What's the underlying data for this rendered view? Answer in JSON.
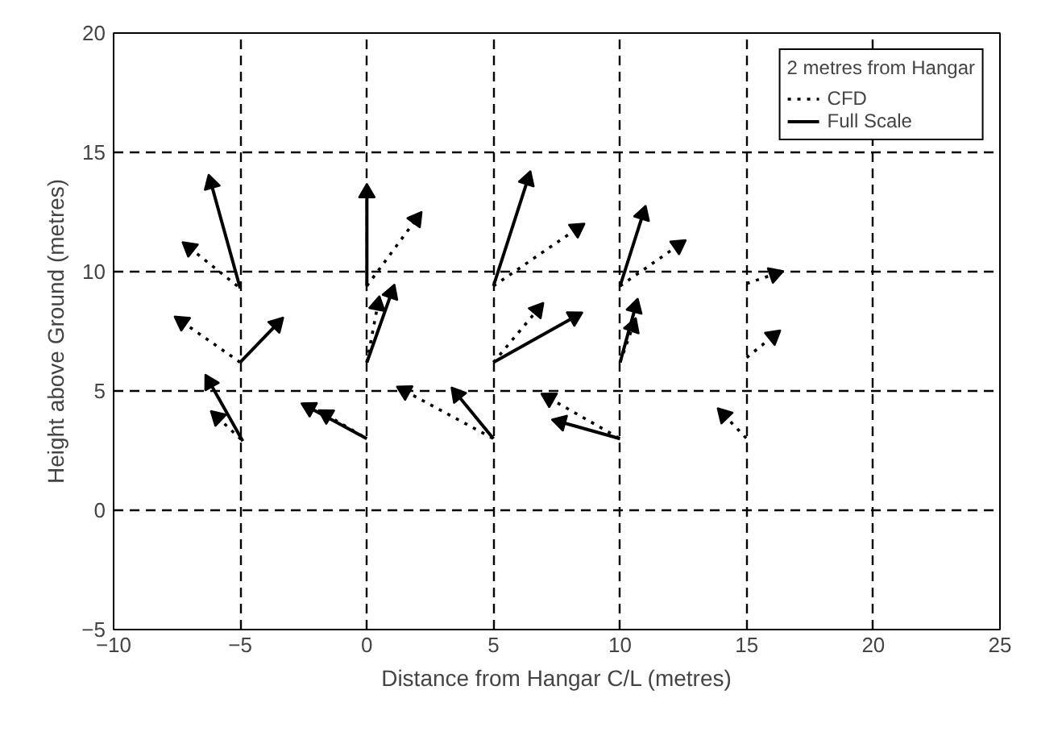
{
  "chart_data": {
    "type": "line",
    "xlabel": "Distance from Hangar C/L (metres)",
    "ylabel": "Height above Ground (metres)",
    "legend_title": "2 metres from Hangar",
    "legend": "top right",
    "grid": true,
    "xlim": [
      -10,
      25
    ],
    "ylim": [
      -5,
      20
    ],
    "xticks": [
      -10,
      -5,
      0,
      5,
      10,
      15,
      20,
      25
    ],
    "yticks": [
      -5,
      0,
      5,
      10,
      15,
      20
    ],
    "series": [
      {
        "name": "CFD",
        "color": "#000000",
        "line_style": "dotted",
        "x": [
          -7.0,
          -5
        ],
        "values": [
          11.0,
          9.3
        ]
      },
      {
        "color": "#000000",
        "line_style": "dotted",
        "x": [
          -7.3,
          -5
        ],
        "values": [
          7.9,
          6.2
        ]
      },
      {
        "color": "#000000",
        "line_style": "dotted",
        "x": [
          -5.9,
          -4.9
        ],
        "values": [
          3.9,
          2.9
        ]
      },
      {
        "color": "#000000",
        "line_style": "dotted",
        "x": [
          0,
          1.95
        ],
        "values": [
          9.4,
          12.2
        ]
      },
      {
        "color": "#000000",
        "line_style": "dotted",
        "x": [
          0,
          0.43
        ],
        "values": [
          6.2,
          8.6
        ]
      },
      {
        "color": "#000000",
        "line_style": "dotted",
        "x": [
          -1.6,
          0
        ],
        "values": [
          4.0,
          3.0
        ]
      },
      {
        "color": "#000000",
        "line_style": "dotted",
        "x": [
          5,
          8.3
        ],
        "values": [
          9.4,
          11.8
        ]
      },
      {
        "color": "#000000",
        "line_style": "dotted",
        "x": [
          5,
          6.74
        ],
        "values": [
          6.2,
          8.4
        ]
      },
      {
        "color": "#000000",
        "line_style": "dotted",
        "x": [
          1.5,
          5
        ],
        "values": [
          5.0,
          3.0
        ]
      },
      {
        "color": "#000000",
        "line_style": "dotted",
        "x": [
          10,
          12.3
        ],
        "values": [
          9.4,
          11.1
        ]
      },
      {
        "color": "#000000",
        "line_style": "dotted",
        "x": [
          10,
          10.5
        ],
        "values": [
          6.2,
          7.7
        ]
      },
      {
        "color": "#000000",
        "line_style": "dotted",
        "x": [
          7.2,
          10
        ],
        "values": [
          4.7,
          3.0
        ]
      },
      {
        "color": "#000000",
        "line_style": "dotted",
        "x": [
          15,
          16.1
        ],
        "values": [
          9.5,
          9.9
        ]
      },
      {
        "color": "#000000",
        "line_style": "dotted",
        "x": [
          15,
          16.05
        ],
        "values": [
          6.4,
          7.3
        ]
      },
      {
        "color": "#000000",
        "line_style": "dotted",
        "x": [
          14.1,
          15
        ],
        "values": [
          4.0,
          3.0
        ]
      },
      {
        "name": "Full Scale",
        "color": "#000000",
        "line_style": "solid",
        "x": [
          -6.15,
          -5
        ],
        "values": [
          13.7,
          9.3
        ]
      },
      {
        "color": "#000000",
        "line_style": "solid",
        "x": [
          -5,
          -3.55
        ],
        "values": [
          6.2,
          7.8
        ]
      },
      {
        "color": "#000000",
        "line_style": "solid",
        "x": [
          -6.2,
          -4.9
        ],
        "values": [
          5.35,
          2.9
        ]
      },
      {
        "color": "#000000",
        "line_style": "solid",
        "x": [
          0,
          0.001
        ],
        "values": [
          9.4,
          13.3
        ]
      },
      {
        "color": "#000000",
        "line_style": "solid",
        "x": [
          0,
          0.97
        ],
        "values": [
          6.2,
          9.1
        ]
      },
      {
        "color": "#000000",
        "line_style": "solid",
        "x": [
          -2.27,
          0
        ],
        "values": [
          4.3,
          3.0
        ]
      },
      {
        "color": "#000000",
        "line_style": "solid",
        "x": [
          5,
          6.35
        ],
        "values": [
          9.4,
          13.85
        ]
      },
      {
        "color": "#000000",
        "line_style": "solid",
        "x": [
          5,
          8.2
        ],
        "values": [
          6.2,
          8.1
        ]
      },
      {
        "color": "#000000",
        "line_style": "solid",
        "x": [
          3.57,
          5
        ],
        "values": [
          4.85,
          3.0
        ]
      },
      {
        "color": "#000000",
        "line_style": "solid",
        "x": [
          10,
          10.9
        ],
        "values": [
          9.4,
          12.4
        ]
      },
      {
        "color": "#000000",
        "line_style": "solid",
        "x": [
          10,
          10.6
        ],
        "values": [
          6.2,
          8.5
        ]
      },
      {
        "color": "#000000",
        "line_style": "solid",
        "x": [
          7.65,
          10
        ],
        "values": [
          3.7,
          3.0
        ]
      }
    ]
  }
}
